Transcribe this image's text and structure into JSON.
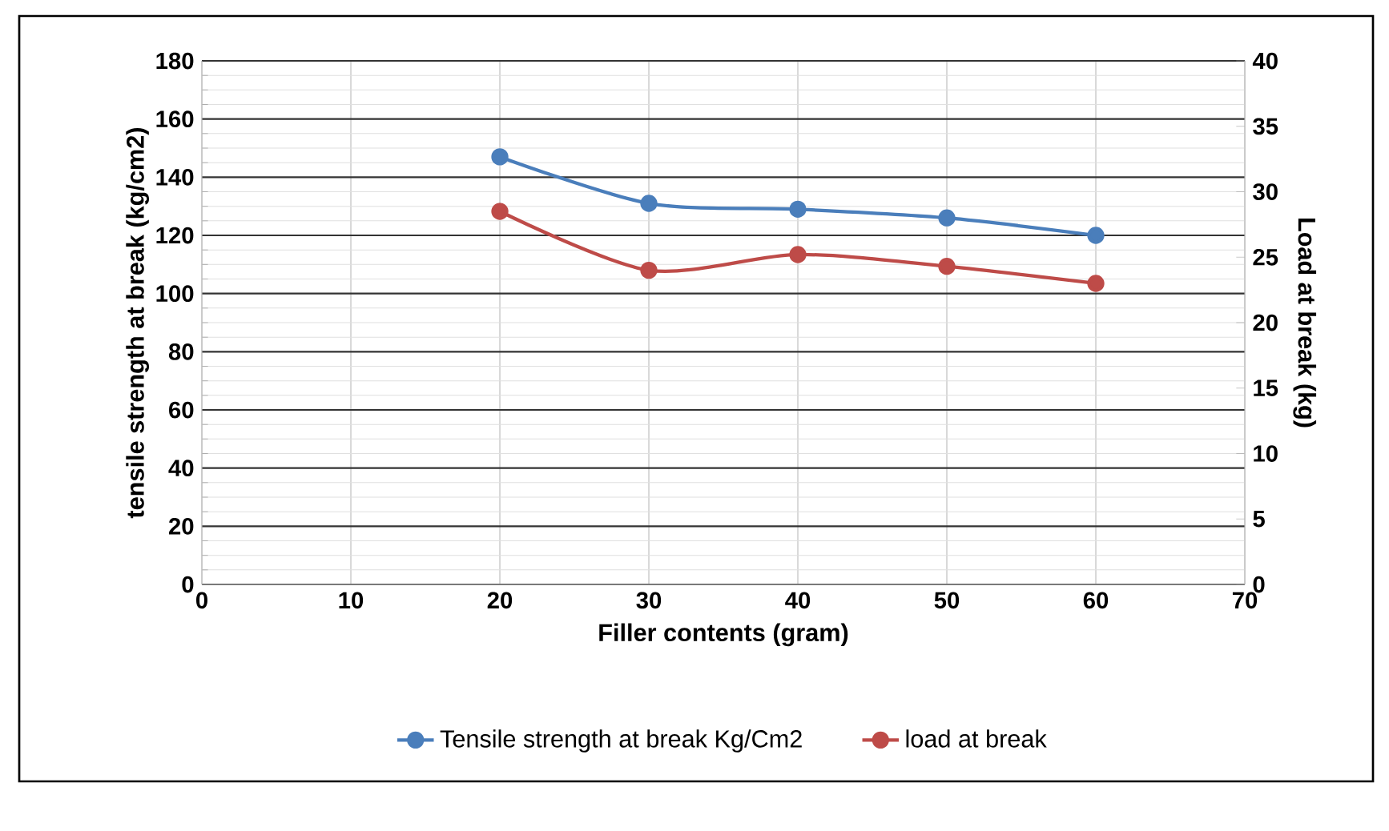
{
  "chart_data": {
    "type": "line",
    "xlabel": "Filler contents (gram)",
    "ylabel": "tensile strength  at break (kg/cm2)",
    "y2label": "Load at break (kg)",
    "x": [
      20,
      30,
      40,
      50,
      60
    ],
    "series": [
      {
        "name": "Tensile strength at break Kg/Cm2",
        "color": "#4a7ebb",
        "values": [
          147,
          131,
          129,
          126,
          120
        ]
      },
      {
        "name": "load at break",
        "color": "#be4b48",
        "values": [
          28.5,
          24.0,
          25.2,
          24.3,
          23.0
        ],
        "axis": "y2"
      }
    ],
    "xlim": [
      0,
      70
    ],
    "xticks": [
      0,
      10,
      20,
      30,
      40,
      50,
      60,
      70
    ],
    "ylim": [
      0,
      180
    ],
    "yticks": [
      0,
      20,
      40,
      60,
      80,
      100,
      120,
      140,
      160,
      180
    ],
    "y2lim": [
      0,
      40
    ],
    "y2ticks": [
      0,
      5,
      10,
      15,
      20,
      25,
      30,
      35,
      40
    ],
    "grid": true,
    "legend": "bottom",
    "marker": "circle",
    "line_style": "solid"
  }
}
